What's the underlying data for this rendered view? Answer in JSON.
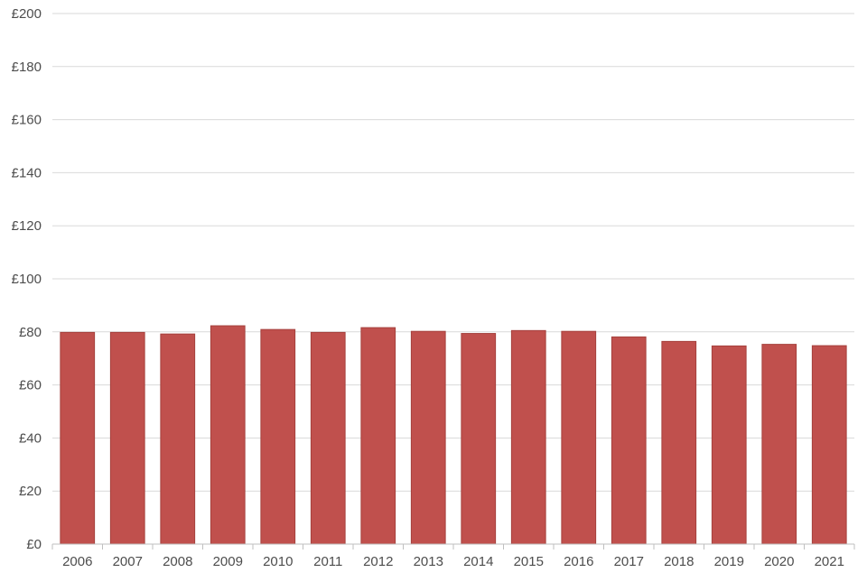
{
  "chart_data": {
    "type": "bar",
    "title": "",
    "xlabel": "",
    "ylabel": "",
    "categories": [
      "2006",
      "2007",
      "2008",
      "2009",
      "2010",
      "2011",
      "2012",
      "2013",
      "2014",
      "2015",
      "2016",
      "2017",
      "2018",
      "2019",
      "2020",
      "2021"
    ],
    "series": [
      {
        "values": [
          79.8,
          79.8,
          79.2,
          82.3,
          80.9,
          79.8,
          81.6,
          80.2,
          79.4,
          80.5,
          80.2,
          78.1,
          76.4,
          74.7,
          75.3,
          74.8
        ]
      }
    ],
    "ylim": [
      0,
      200
    ],
    "yticks": [
      0,
      20,
      40,
      60,
      80,
      100,
      120,
      140,
      160,
      180,
      200
    ],
    "ytick_labels": [
      "£0",
      "£20",
      "£40",
      "£60",
      "£80",
      "£100",
      "£120",
      "£140",
      "£160",
      "£180",
      "£200"
    ],
    "grid": true,
    "legend": "none",
    "colors": {
      "bar_fill": "#c0504d",
      "bar_stroke": "#a5403d",
      "gridline": "#d9d9d9",
      "axis": "#bfbfbf",
      "tick_text": "#4d4d4d"
    }
  }
}
